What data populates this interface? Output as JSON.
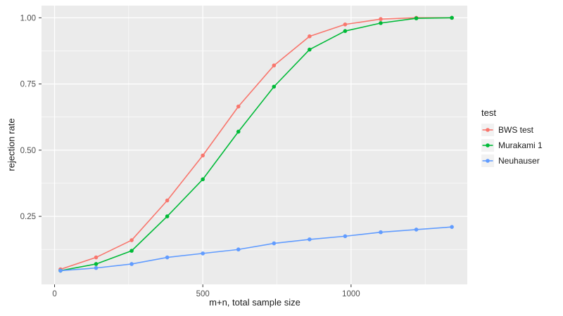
{
  "figure": {
    "background": "#FFFFFF",
    "panel_background": "#EBEBEB",
    "grid_color": "#FFFFFF",
    "tick_mark_color": "#333333",
    "tick_label_color": "#4D4D4D",
    "title_color": "#1A1A1A",
    "legend_key_background": "#F2F2F2"
  },
  "chart_data": {
    "type": "line",
    "title": "",
    "xlabel": "m+n, total sample size",
    "ylabel": "rejection rate",
    "x": [
      20,
      140,
      260,
      380,
      500,
      620,
      740,
      860,
      980,
      1100,
      1220,
      1340
    ],
    "series": [
      {
        "name": "BWS test",
        "color": "#F8766D",
        "values": [
          0.05,
          0.095,
          0.16,
          0.31,
          0.48,
          0.665,
          0.82,
          0.93,
          0.975,
          0.995,
          1.0,
          1.0
        ]
      },
      {
        "name": "Murakami 1",
        "color": "#00BA38",
        "values": [
          0.045,
          0.07,
          0.12,
          0.25,
          0.39,
          0.57,
          0.74,
          0.88,
          0.95,
          0.98,
          0.998,
          1.0
        ]
      },
      {
        "name": "Neuhauser",
        "color": "#619CFF",
        "values": [
          0.045,
          0.055,
          0.07,
          0.095,
          0.11,
          0.125,
          0.148,
          0.163,
          0.175,
          0.19,
          0.2,
          0.21
        ]
      }
    ],
    "x_ticks": [
      0,
      500,
      1000
    ],
    "x_tick_labels": [
      "0",
      "500",
      "1000"
    ],
    "y_ticks": [
      0.25,
      0.5,
      0.75,
      1.0
    ],
    "y_tick_labels": [
      "0.25",
      "0.50",
      "0.75",
      "1.00"
    ],
    "x_minor": [
      250,
      750,
      1250
    ],
    "y_minor": [
      0.125,
      0.375,
      0.625,
      0.875
    ],
    "xlim": [
      -44,
      1392
    ],
    "ylim": [
      -0.007,
      1.046
    ],
    "grid": true,
    "legend": {
      "title": "test",
      "position": "right"
    }
  }
}
